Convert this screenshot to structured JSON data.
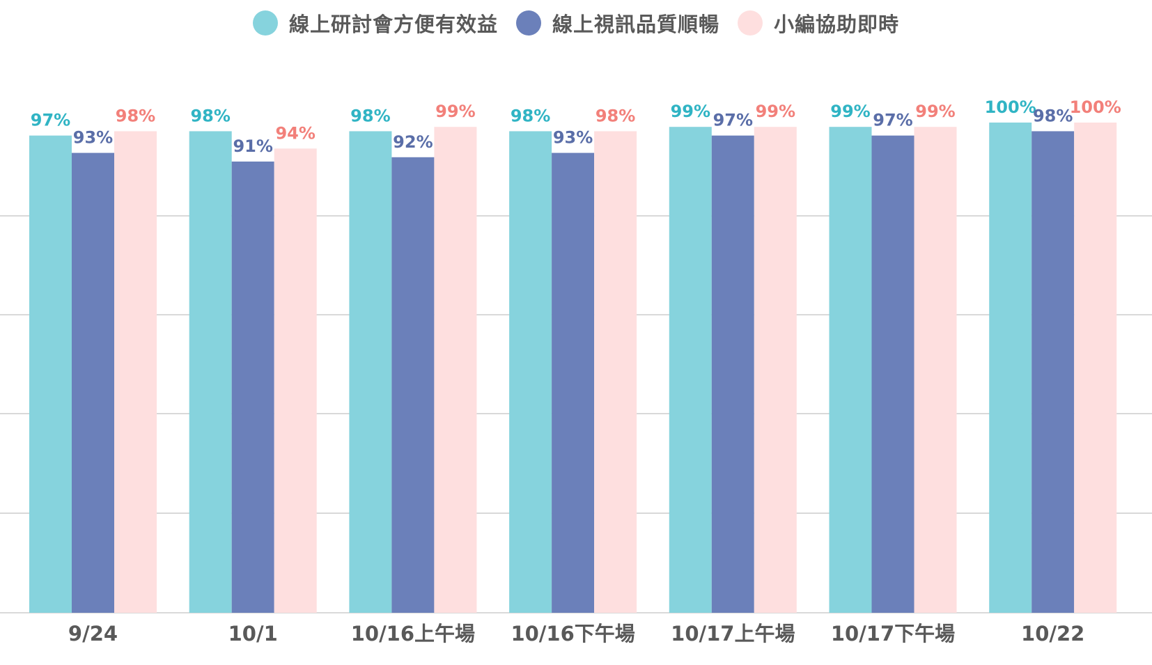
{
  "chart_data": {
    "type": "bar",
    "categories": [
      "9/24",
      "10/1",
      "10/16上午場",
      "10/16下午場",
      "10/17上午場",
      "10/17下午場",
      "10/22"
    ],
    "series": [
      {
        "name": "線上研討會方便有效益",
        "values": [
          97,
          98,
          98,
          98,
          99,
          99,
          100
        ],
        "labels": [
          "97%",
          "98%",
          "98%",
          "98%",
          "99%",
          "99%",
          "100%"
        ],
        "color": "#86D3DD",
        "label_color": "#30B4C4"
      },
      {
        "name": "線上視訊品質順暢",
        "values": [
          93,
          91,
          92,
          93,
          97,
          97,
          98
        ],
        "labels": [
          "93%",
          "91%",
          "92%",
          "93%",
          "97%",
          "97%",
          "98%"
        ],
        "color": "#6B80BA",
        "label_color": "#5A6EA8"
      },
      {
        "name": "小編協助即時",
        "values": [
          98,
          94,
          99,
          98,
          99,
          99,
          100
        ],
        "labels": [
          "98%",
          "94%",
          "99%",
          "98%",
          "99%",
          "99%",
          "100%"
        ],
        "color": "#FEDFDF",
        "label_color": "#F2807A"
      }
    ],
    "ylim": [
      0,
      100
    ],
    "grid": true,
    "legend": "top-center",
    "title": "",
    "xlabel": "",
    "ylabel": ""
  }
}
